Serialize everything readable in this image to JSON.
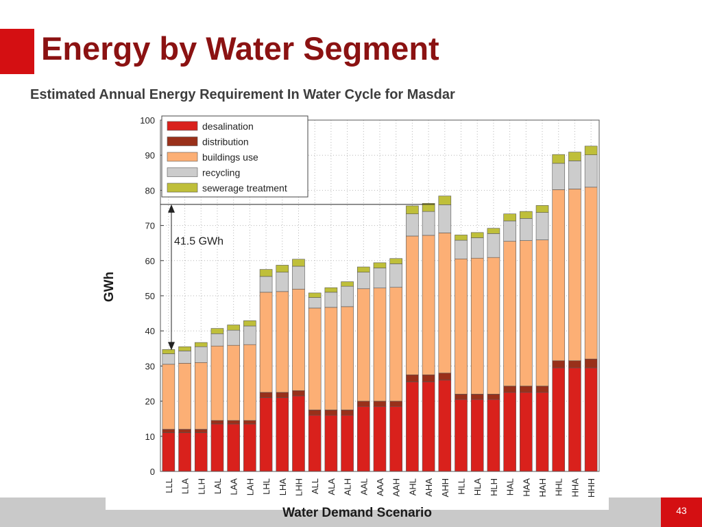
{
  "slide": {
    "title": "Energy by Water Segment",
    "subtitle": "Estimated Annual Energy Requirement In Water Cycle for Masdar",
    "page_number": "43",
    "accent_color": "#d40f12",
    "title_color": "#8b1212"
  },
  "chart_data": {
    "type": "bar",
    "stacked": true,
    "title": "",
    "xlabel": "Water Demand Scenario",
    "ylabel": "GWh",
    "ylim": [
      0,
      100
    ],
    "yticks": [
      0,
      10,
      20,
      30,
      40,
      50,
      60,
      70,
      80,
      90,
      100
    ],
    "grid": true,
    "legend_position": "top-left",
    "annotation": {
      "text": "41.5 GWh",
      "from_value": 34.5,
      "to_value": 76
    },
    "categories": [
      "LLL",
      "LLA",
      "LLH",
      "LAL",
      "LAA",
      "LAH",
      "LHL",
      "LHA",
      "LHH",
      "ALL",
      "ALA",
      "ALH",
      "AAL",
      "AAA",
      "AAH",
      "AHL",
      "AHA",
      "AHH",
      "HLL",
      "HLA",
      "HLH",
      "HAL",
      "HAA",
      "HAH",
      "HHL",
      "HHA",
      "HHH"
    ],
    "series": [
      {
        "name": "desalination",
        "color": "#d9211c",
        "values": [
          11,
          11,
          11,
          13.5,
          13.5,
          13.5,
          21,
          21,
          21.5,
          16,
          16,
          16,
          18.5,
          18.5,
          18.5,
          25.5,
          25.5,
          26,
          20.5,
          20.5,
          20.5,
          22.5,
          22.5,
          22.5,
          29.5,
          29.5,
          29.5
        ]
      },
      {
        "name": "distribution",
        "color": "#99301a",
        "values": [
          1,
          1,
          1,
          1,
          1,
          1,
          1.5,
          1.5,
          1.5,
          1.5,
          1.5,
          1.5,
          1.5,
          1.5,
          1.5,
          2,
          2,
          2,
          1.5,
          1.5,
          1.5,
          1.8,
          1.8,
          1.8,
          2,
          2,
          2.5
        ]
      },
      {
        "name": "buildings use",
        "color": "#fcaf75",
        "values": [
          18.5,
          18.8,
          19,
          21.2,
          21.4,
          21.6,
          28.5,
          28.7,
          28.9,
          29,
          29.2,
          29.4,
          32,
          32.2,
          32.4,
          39.5,
          39.7,
          39.9,
          38.5,
          38.7,
          38.9,
          41.2,
          41.4,
          41.6,
          48.7,
          48.9,
          48.9
        ]
      },
      {
        "name": "recycling",
        "color": "#cccccc",
        "values": [
          3,
          3.5,
          4.5,
          3.5,
          4.3,
          5.3,
          4.5,
          5.5,
          6.5,
          3,
          4.3,
          5.8,
          4.7,
          5.7,
          6.7,
          6.3,
          6.8,
          8,
          5.3,
          5.8,
          6.8,
          5.8,
          6.3,
          7.8,
          7.5,
          8,
          9.2
        ]
      },
      {
        "name": "sewerage treatment",
        "color": "#bfbf3a",
        "values": [
          1.2,
          1.2,
          1.2,
          1.5,
          1.5,
          1.5,
          2,
          2,
          2,
          1.3,
          1.3,
          1.3,
          1.5,
          1.5,
          1.5,
          2.3,
          2.3,
          2.5,
          1.5,
          1.5,
          1.5,
          2,
          2,
          2,
          2.5,
          2.5,
          2.5
        ]
      }
    ]
  }
}
